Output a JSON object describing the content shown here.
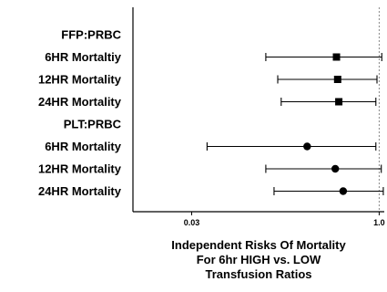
{
  "chart_data": {
    "type": "forest",
    "xscale": "log",
    "xlim": [
      0.01,
      1.1
    ],
    "reference_line": 1.0,
    "xticks": [
      {
        "value": 0.03,
        "label": "0.03"
      },
      {
        "value": 1.0,
        "label": "1.0"
      }
    ],
    "xlabel_lines": [
      "Independent Risks Of Mortality",
      "For 6hr HIGH vs. LOW",
      "Transfusion Ratios"
    ],
    "rows": [
      {
        "label": "FFP:PRBC",
        "header": true
      },
      {
        "label": "6HR Mortaltiy",
        "estimate": 0.45,
        "lower": 0.12,
        "upper": 1.05,
        "marker": "square"
      },
      {
        "label": "12HR Mortality",
        "estimate": 0.46,
        "lower": 0.15,
        "upper": 0.96,
        "marker": "square"
      },
      {
        "label": "24HR Mortality",
        "estimate": 0.47,
        "lower": 0.16,
        "upper": 0.94,
        "marker": "square"
      },
      {
        "label": "PLT:PRBC",
        "header": true
      },
      {
        "label": "6HR Mortality",
        "estimate": 0.26,
        "lower": 0.04,
        "upper": 0.94,
        "marker": "circle"
      },
      {
        "label": "12HR Mortality",
        "estimate": 0.44,
        "lower": 0.12,
        "upper": 1.04,
        "marker": "circle"
      },
      {
        "label": "24HR Mortality",
        "estimate": 0.51,
        "lower": 0.14,
        "upper": 1.08,
        "marker": "circle"
      }
    ]
  }
}
